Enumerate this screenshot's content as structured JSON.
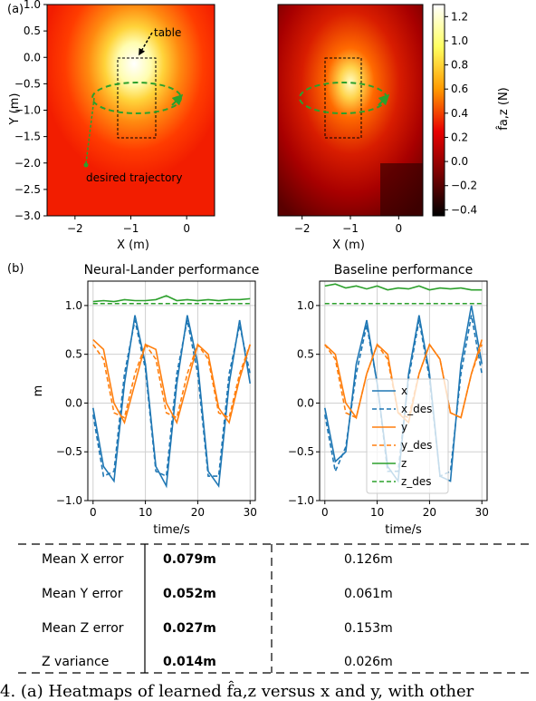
{
  "panel_a_label": "(a)",
  "panel_b_label": "(b)",
  "heatmaps": {
    "xlabel": "X (m)",
    "ylabel": "Y (m)",
    "xticks": [
      "−2",
      "−1",
      "0"
    ],
    "yticks": [
      "1.0",
      "0.5",
      "0.0",
      "−0.5",
      "−1.0",
      "−1.5",
      "−2.0",
      "−2.5",
      "−3.0"
    ],
    "annotation_table": "table",
    "annotation_trajectory": "desired trajectory",
    "colorbar_label": "f̂a,z (N)",
    "colorbar_ticks": [
      "1.2",
      "1.0",
      "0.8",
      "0.6",
      "0.4",
      "0.2",
      "0.0",
      "−0.2",
      "−0.4"
    ],
    "colormap": "hot",
    "colors": {
      "trajectory": "#2ca02c"
    }
  },
  "chart_data": [
    {
      "type": "line",
      "title": "Neural-Lander performance",
      "xlabel": "time/s",
      "ylabel": "m",
      "xlim": [
        -1,
        31
      ],
      "ylim": [
        -1.0,
        1.25
      ],
      "xticks": [
        "0",
        "10",
        "20",
        "30"
      ],
      "yticks": [
        "1.0",
        "0.5",
        "0.0",
        "−0.5",
        "−1.0"
      ],
      "x": [
        0,
        2,
        4,
        6,
        8,
        10,
        12,
        14,
        16,
        18,
        20,
        22,
        24,
        26,
        28,
        30
      ],
      "series": [
        {
          "name": "x",
          "values": [
            -0.05,
            -0.65,
            -0.8,
            0.2,
            0.9,
            0.4,
            -0.65,
            -0.85,
            0.2,
            0.9,
            0.4,
            -0.7,
            -0.85,
            0.2,
            0.85,
            0.2
          ]
        },
        {
          "name": "x_des",
          "values": [
            -0.12,
            -0.75,
            -0.7,
            0.3,
            0.85,
            0.35,
            -0.7,
            -0.75,
            0.3,
            0.85,
            0.3,
            -0.75,
            -0.75,
            0.3,
            0.8,
            0.3
          ]
        },
        {
          "name": "y",
          "values": [
            0.65,
            0.55,
            0.0,
            -0.2,
            0.2,
            0.6,
            0.55,
            0.0,
            -0.2,
            0.2,
            0.6,
            0.5,
            -0.05,
            -0.2,
            0.25,
            0.6
          ]
        },
        {
          "name": "y_des",
          "values": [
            0.6,
            0.45,
            -0.1,
            -0.15,
            0.3,
            0.6,
            0.45,
            -0.1,
            -0.15,
            0.3,
            0.6,
            0.45,
            -0.1,
            -0.15,
            0.3,
            0.6
          ]
        },
        {
          "name": "z",
          "values": [
            1.04,
            1.05,
            1.04,
            1.06,
            1.05,
            1.05,
            1.06,
            1.1,
            1.05,
            1.06,
            1.05,
            1.06,
            1.05,
            1.06,
            1.06,
            1.07
          ]
        },
        {
          "name": "z_des",
          "values": [
            1.02,
            1.02,
            1.02,
            1.02,
            1.02,
            1.02,
            1.02,
            1.02,
            1.02,
            1.02,
            1.02,
            1.02,
            1.02,
            1.02,
            1.02,
            1.02
          ]
        }
      ]
    },
    {
      "type": "line",
      "title": "Baseline performance",
      "xlabel": "time/s",
      "ylabel": "",
      "xlim": [
        -1,
        31
      ],
      "ylim": [
        -1.0,
        1.25
      ],
      "xticks": [
        "0",
        "10",
        "20",
        "30"
      ],
      "yticks": [
        "1.0",
        "0.5",
        "0.0",
        "−0.5",
        "−1.0"
      ],
      "legend": "center",
      "x": [
        0,
        2,
        4,
        6,
        8,
        10,
        12,
        14,
        16,
        18,
        20,
        22,
        24,
        26,
        28,
        30
      ],
      "series": [
        {
          "name": "x",
          "values": [
            -0.05,
            -0.6,
            -0.5,
            0.4,
            0.85,
            0.2,
            -0.65,
            -0.8,
            0.3,
            0.9,
            0.3,
            -0.75,
            -0.8,
            0.4,
            1.0,
            0.4
          ]
        },
        {
          "name": "x_des",
          "values": [
            -0.12,
            -0.7,
            -0.45,
            0.3,
            0.8,
            0.2,
            -0.7,
            -0.7,
            0.25,
            0.85,
            0.25,
            -0.75,
            -0.7,
            0.3,
            0.9,
            0.3
          ]
        },
        {
          "name": "y",
          "values": [
            0.6,
            0.5,
            0.0,
            -0.15,
            0.3,
            0.6,
            0.5,
            -0.1,
            -0.2,
            0.3,
            0.6,
            0.45,
            -0.1,
            -0.15,
            0.3,
            0.65
          ]
        },
        {
          "name": "y_des",
          "values": [
            0.6,
            0.45,
            -0.1,
            -0.15,
            0.3,
            0.6,
            0.45,
            -0.1,
            -0.15,
            0.3,
            0.6,
            0.45,
            -0.1,
            -0.15,
            0.3,
            0.6
          ]
        },
        {
          "name": "z",
          "values": [
            1.2,
            1.22,
            1.18,
            1.2,
            1.17,
            1.2,
            1.16,
            1.18,
            1.17,
            1.2,
            1.16,
            1.18,
            1.17,
            1.18,
            1.16,
            1.16
          ]
        },
        {
          "name": "z_des",
          "values": [
            1.02,
            1.02,
            1.02,
            1.02,
            1.02,
            1.02,
            1.02,
            1.02,
            1.02,
            1.02,
            1.02,
            1.02,
            1.02,
            1.02,
            1.02,
            1.02
          ]
        }
      ]
    }
  ],
  "series_colors": {
    "x": "#1f77b4",
    "y": "#ff7f0e",
    "z": "#2ca02c"
  },
  "table": {
    "rows": [
      {
        "label": "Mean X error",
        "neural": "0.079m",
        "baseline": "0.126m"
      },
      {
        "label": "Mean Y error",
        "neural": "0.052m",
        "baseline": "0.061m"
      },
      {
        "label": "Mean Z error",
        "neural": "0.027m",
        "baseline": "0.153m"
      },
      {
        "label": "Z variance",
        "neural": "0.014m",
        "baseline": "0.026m"
      }
    ]
  },
  "caption": "4. (a) Heatmaps of learned f̂a,z versus x and y, with other"
}
